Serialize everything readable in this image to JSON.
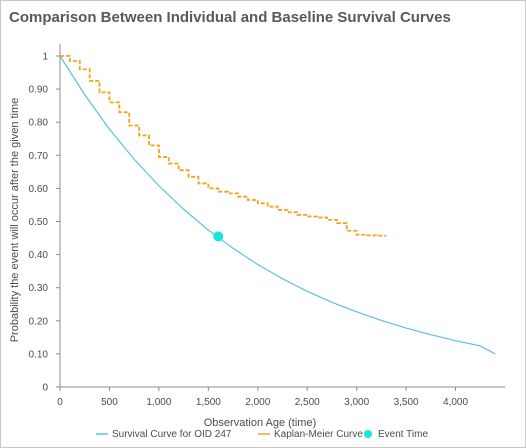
{
  "colors": {
    "survival_curve": "#5bc0e8",
    "kaplan_meier": "#f5a21a",
    "event_time": "#14e6e6",
    "axis": "#8c8c8c"
  },
  "chart_data": {
    "type": "line",
    "title": "Comparison Between Individual and Baseline Survival Curves",
    "xlabel": "Observation Age (time)",
    "ylabel": "Probability the event will occur after the given time",
    "xlim": [
      0,
      4500
    ],
    "ylim": [
      0,
      1
    ],
    "x_ticks": [
      0,
      500,
      1000,
      1500,
      2000,
      2500,
      3000,
      3500,
      4000
    ],
    "x_tick_labels": [
      "0",
      "500",
      "1,000",
      "1,500",
      "2,000",
      "2,500",
      "3,000",
      "3,500",
      "4,000"
    ],
    "y_ticks": [
      0,
      0.1,
      0.2,
      0.3,
      0.4,
      0.5,
      0.6,
      0.7,
      0.8,
      0.9,
      1
    ],
    "y_tick_labels": [
      "0",
      "0.10",
      "0.20",
      "0.30",
      "0.40",
      "0.50",
      "0.60",
      "0.70",
      "0.80",
      "0.90",
      "1"
    ],
    "grid": false,
    "legend_position": "bottom",
    "series": [
      {
        "name": "Survival Curve for OID 247",
        "style": "solid",
        "x": [
          0,
          250,
          500,
          750,
          1000,
          1250,
          1500,
          1750,
          2000,
          2250,
          2500,
          2750,
          3000,
          3250,
          3500,
          3750,
          4000,
          4250,
          4400
        ],
        "y": [
          1.0,
          0.883,
          0.779,
          0.688,
          0.608,
          0.537,
          0.474,
          0.419,
          0.37,
          0.327,
          0.289,
          0.256,
          0.227,
          0.201,
          0.178,
          0.158,
          0.14,
          0.124,
          0.1
        ]
      },
      {
        "name": "Kaplan-Meier Curve",
        "style": "dashed",
        "x": [
          0,
          100,
          200,
          300,
          400,
          500,
          600,
          700,
          800,
          900,
          1000,
          1100,
          1200,
          1300,
          1400,
          1500,
          1600,
          1700,
          1800,
          1900,
          2000,
          2100,
          2200,
          2300,
          2400,
          2500,
          2600,
          2700,
          2800,
          2900,
          3000,
          3100,
          3200,
          3300
        ],
        "y": [
          1.0,
          0.985,
          0.96,
          0.925,
          0.89,
          0.86,
          0.83,
          0.79,
          0.76,
          0.73,
          0.695,
          0.675,
          0.655,
          0.635,
          0.615,
          0.6,
          0.59,
          0.585,
          0.575,
          0.565,
          0.555,
          0.545,
          0.535,
          0.528,
          0.52,
          0.515,
          0.512,
          0.505,
          0.495,
          0.472,
          0.46,
          0.458,
          0.457,
          0.457
        ]
      },
      {
        "name": "Event Time",
        "style": "marker",
        "x": [
          1600
        ],
        "y": [
          0.455
        ]
      }
    ]
  }
}
